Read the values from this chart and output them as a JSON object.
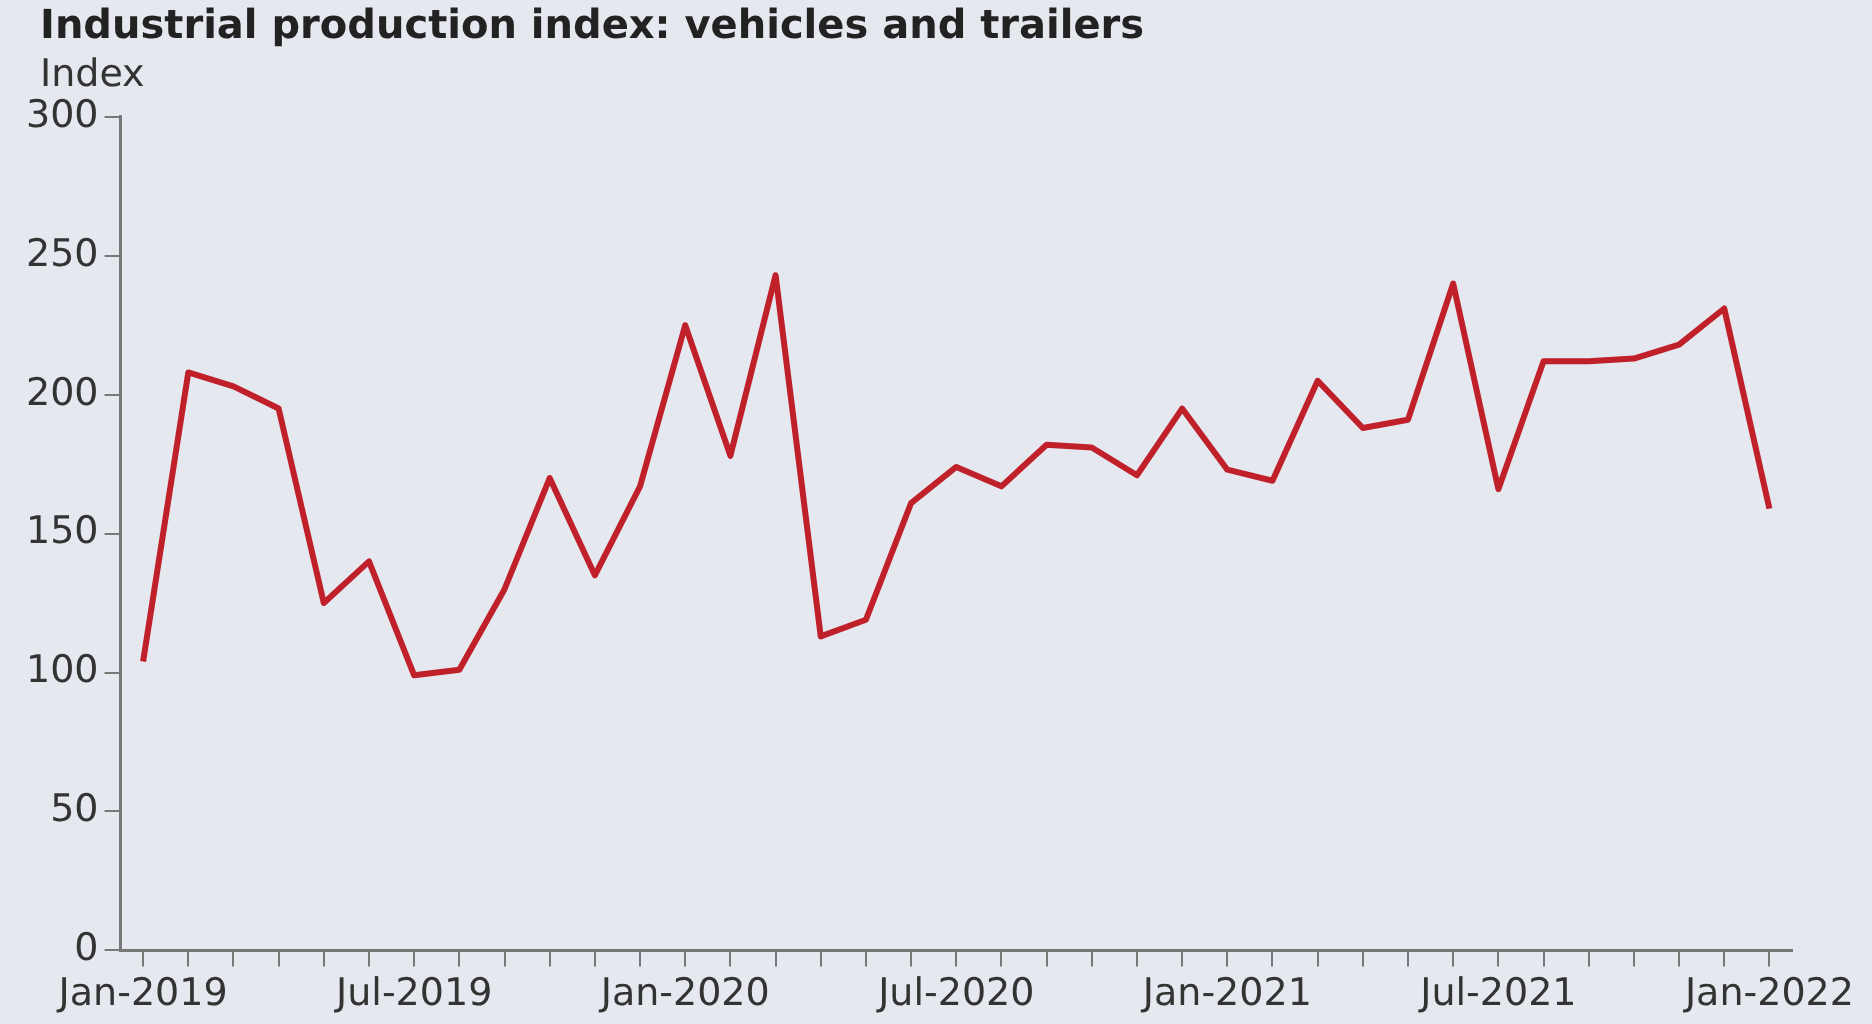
{
  "chart_data": {
    "type": "line",
    "title": "Industrial production index: vehicles and trailers",
    "ylabel": "Index",
    "categories": [
      "Jan-2019",
      null,
      null,
      null,
      null,
      null,
      "Jul-2019",
      null,
      null,
      null,
      null,
      null,
      "Jan-2020",
      null,
      null,
      null,
      null,
      null,
      "Jul-2020",
      null,
      null,
      null,
      null,
      null,
      "Jan-2021",
      null,
      null,
      null,
      null,
      null,
      "Jul-2021",
      null,
      null,
      null,
      null,
      null,
      "Jan-2022"
    ],
    "series": [
      {
        "color": "#c0202a",
        "values": [
          104,
          208,
          203,
          195,
          125,
          140,
          99,
          101,
          130,
          170,
          135,
          167,
          225,
          178,
          243,
          113,
          119,
          161,
          174,
          167,
          182,
          181,
          171,
          195,
          173,
          169,
          205,
          188,
          191,
          240,
          166,
          212,
          212,
          213,
          218,
          231,
          159
        ]
      }
    ],
    "ylim": [
      0,
      300
    ],
    "yticks": [
      0,
      50,
      100,
      150,
      200,
      250,
      300
    ],
    "grid": false,
    "legend": false,
    "marker": "none",
    "line_style": "solid"
  }
}
